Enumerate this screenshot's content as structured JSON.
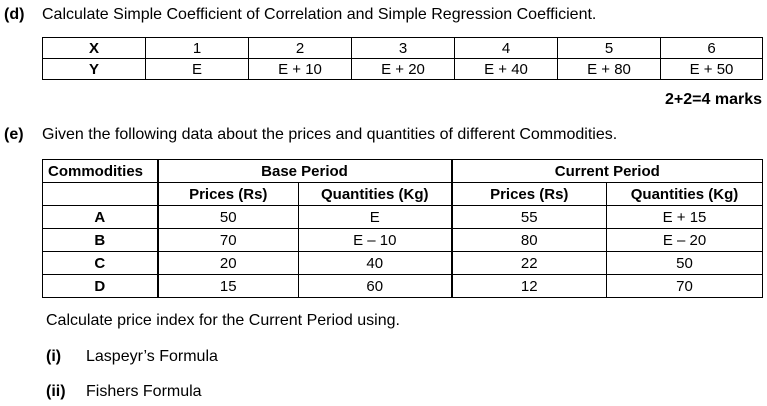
{
  "part_d": {
    "label": "(d)",
    "question": "Calculate Simple Coefficient of Correlation and Simple Regression Coefficient.",
    "table": {
      "x_label": "X",
      "y_label": "Y",
      "x_values": [
        "1",
        "2",
        "3",
        "4",
        "5",
        "6"
      ],
      "y_values": [
        "E",
        "E + 10",
        "E + 20",
        "E + 40",
        "E + 80",
        "E + 50"
      ]
    },
    "marks": "2+2=4 marks"
  },
  "part_e": {
    "label": "(e)",
    "question": "Given the following data about the prices and quantities of different Commodities.",
    "table": {
      "commodities_header": "Commodities",
      "base_period_header": "Base Period",
      "current_period_header": "Current Period",
      "prices_header": "Prices (Rs)",
      "quantities_header": "Quantities (Kg)",
      "rows": [
        {
          "commodity": "A",
          "base_price": "50",
          "base_qty": "E",
          "cur_price": "55",
          "cur_qty": "E + 15"
        },
        {
          "commodity": "B",
          "base_price": "70",
          "base_qty": "E – 10",
          "cur_price": "80",
          "cur_qty": "E – 20"
        },
        {
          "commodity": "C",
          "base_price": "20",
          "base_qty": "40",
          "cur_price": "22",
          "cur_qty": "50"
        },
        {
          "commodity": "D",
          "base_price": "15",
          "base_qty": "60",
          "cur_price": "12",
          "cur_qty": "70"
        }
      ]
    },
    "instruction": "Calculate price index for the Current Period using.",
    "sub_items": [
      {
        "label": "(i)",
        "text": "Laspeyr’s Formula"
      },
      {
        "label": "(ii)",
        "text": "Fishers Formula"
      }
    ]
  }
}
